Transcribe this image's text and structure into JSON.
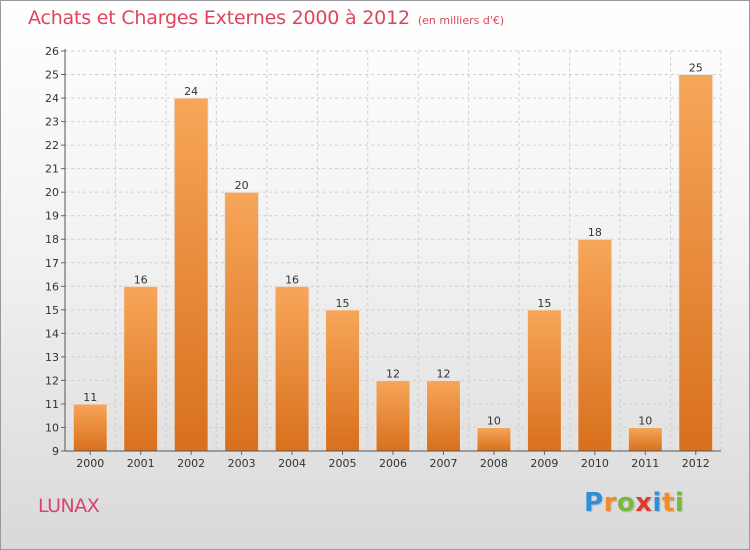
{
  "title": "Achats et Charges Externes 2000 à 2012",
  "subtitle": "(en milliers d'€)",
  "commune": "LUNAX",
  "logo": {
    "letters": [
      "P",
      "r",
      "o",
      "x",
      "i",
      "t",
      "i"
    ],
    "colors": [
      "#2f8fd6",
      "#f28c28",
      "#7ab83a",
      "#e23a2e",
      "#2f8fd6",
      "#f28c28",
      "#7ab83a"
    ]
  },
  "colors": {
    "title": "#e0445c",
    "commune": "#d8446e",
    "bar_light": "#f7a65a",
    "bar_dark": "#d8701c",
    "grid": "#cfcfcf"
  },
  "chart_data": {
    "type": "bar",
    "title": "Achats et Charges Externes 2000 à 2012",
    "subtitle": "(en milliers d'€)",
    "categories": [
      "2000",
      "2001",
      "2002",
      "2003",
      "2004",
      "2005",
      "2006",
      "2007",
      "2008",
      "2009",
      "2010",
      "2011",
      "2012"
    ],
    "values": [
      11,
      16,
      24,
      20,
      16,
      15,
      12,
      12,
      10,
      15,
      18,
      10,
      25
    ],
    "ylim": [
      9,
      26
    ],
    "yticks": [
      9,
      10,
      11,
      12,
      13,
      14,
      15,
      16,
      17,
      18,
      19,
      20,
      21,
      22,
      23,
      24,
      25,
      26
    ],
    "grid": true,
    "legend": "none"
  }
}
